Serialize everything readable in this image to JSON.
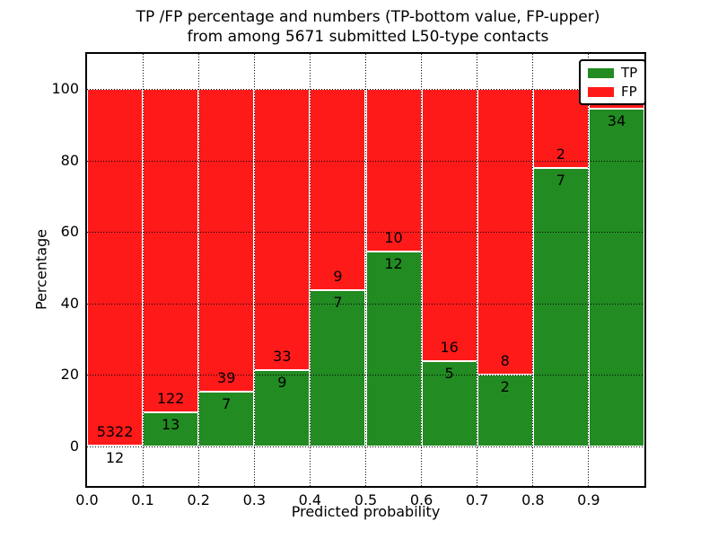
{
  "title": {
    "line1": "TP /FP percentage and numbers (TP-bottom value, FP-upper)",
    "line2": "from among 5671 submitted L50-type contacts"
  },
  "axes": {
    "xlabel": "Predicted probability",
    "ylabel": "Percentage",
    "xtick_labels": [
      "0.0",
      "0.1",
      "0.2",
      "0.3",
      "0.4",
      "0.5",
      "0.6",
      "0.7",
      "0.8",
      "0.9"
    ],
    "ytick_labels": [
      "0",
      "20",
      "40",
      "60",
      "80",
      "100"
    ],
    "yticks": [
      0,
      20,
      40,
      60,
      80,
      100
    ],
    "grid_style": "dotted"
  },
  "legend": {
    "position": "upper right",
    "items": [
      {
        "label": "TP",
        "color": "#228B22"
      },
      {
        "label": "FP",
        "color": "#FF1A1A"
      }
    ]
  },
  "colors": {
    "tp": "#228B22",
    "fp": "#FF1A1A",
    "bar_edge": "#ffffff",
    "grid": "#000000",
    "frame": "#000000",
    "background": "#ffffff"
  },
  "chart_data": {
    "type": "bar",
    "stacked": true,
    "title": "TP /FP percentage and numbers (TP-bottom value, FP-upper) from among 5671 submitted L50-type contacts",
    "xlabel": "Predicted probability",
    "ylabel": "Percentage",
    "total_contacts": 5671,
    "x_bins": [
      [
        0.0,
        0.1
      ],
      [
        0.1,
        0.2
      ],
      [
        0.2,
        0.3
      ],
      [
        0.3,
        0.4
      ],
      [
        0.4,
        0.5
      ],
      [
        0.5,
        0.6
      ],
      [
        0.6,
        0.7
      ],
      [
        0.7,
        0.8
      ],
      [
        0.8,
        0.9
      ],
      [
        0.9,
        1.0
      ]
    ],
    "series": [
      {
        "name": "TP",
        "counts": [
          12,
          13,
          7,
          9,
          7,
          12,
          5,
          2,
          7,
          34
        ],
        "pct": [
          0.22,
          9.63,
          15.22,
          21.43,
          43.75,
          54.55,
          23.81,
          20.0,
          77.78,
          94.44
        ]
      },
      {
        "name": "FP",
        "counts": [
          5322,
          122,
          39,
          33,
          9,
          10,
          16,
          8,
          2,
          2
        ],
        "pct": [
          99.78,
          90.37,
          84.78,
          78.57,
          56.25,
          45.45,
          76.19,
          80.0,
          22.22,
          5.56
        ]
      }
    ],
    "ylim": [
      -11,
      110
    ],
    "xlim": [
      0.0,
      1.0
    ],
    "legend_position": "upper right",
    "grid": true
  }
}
